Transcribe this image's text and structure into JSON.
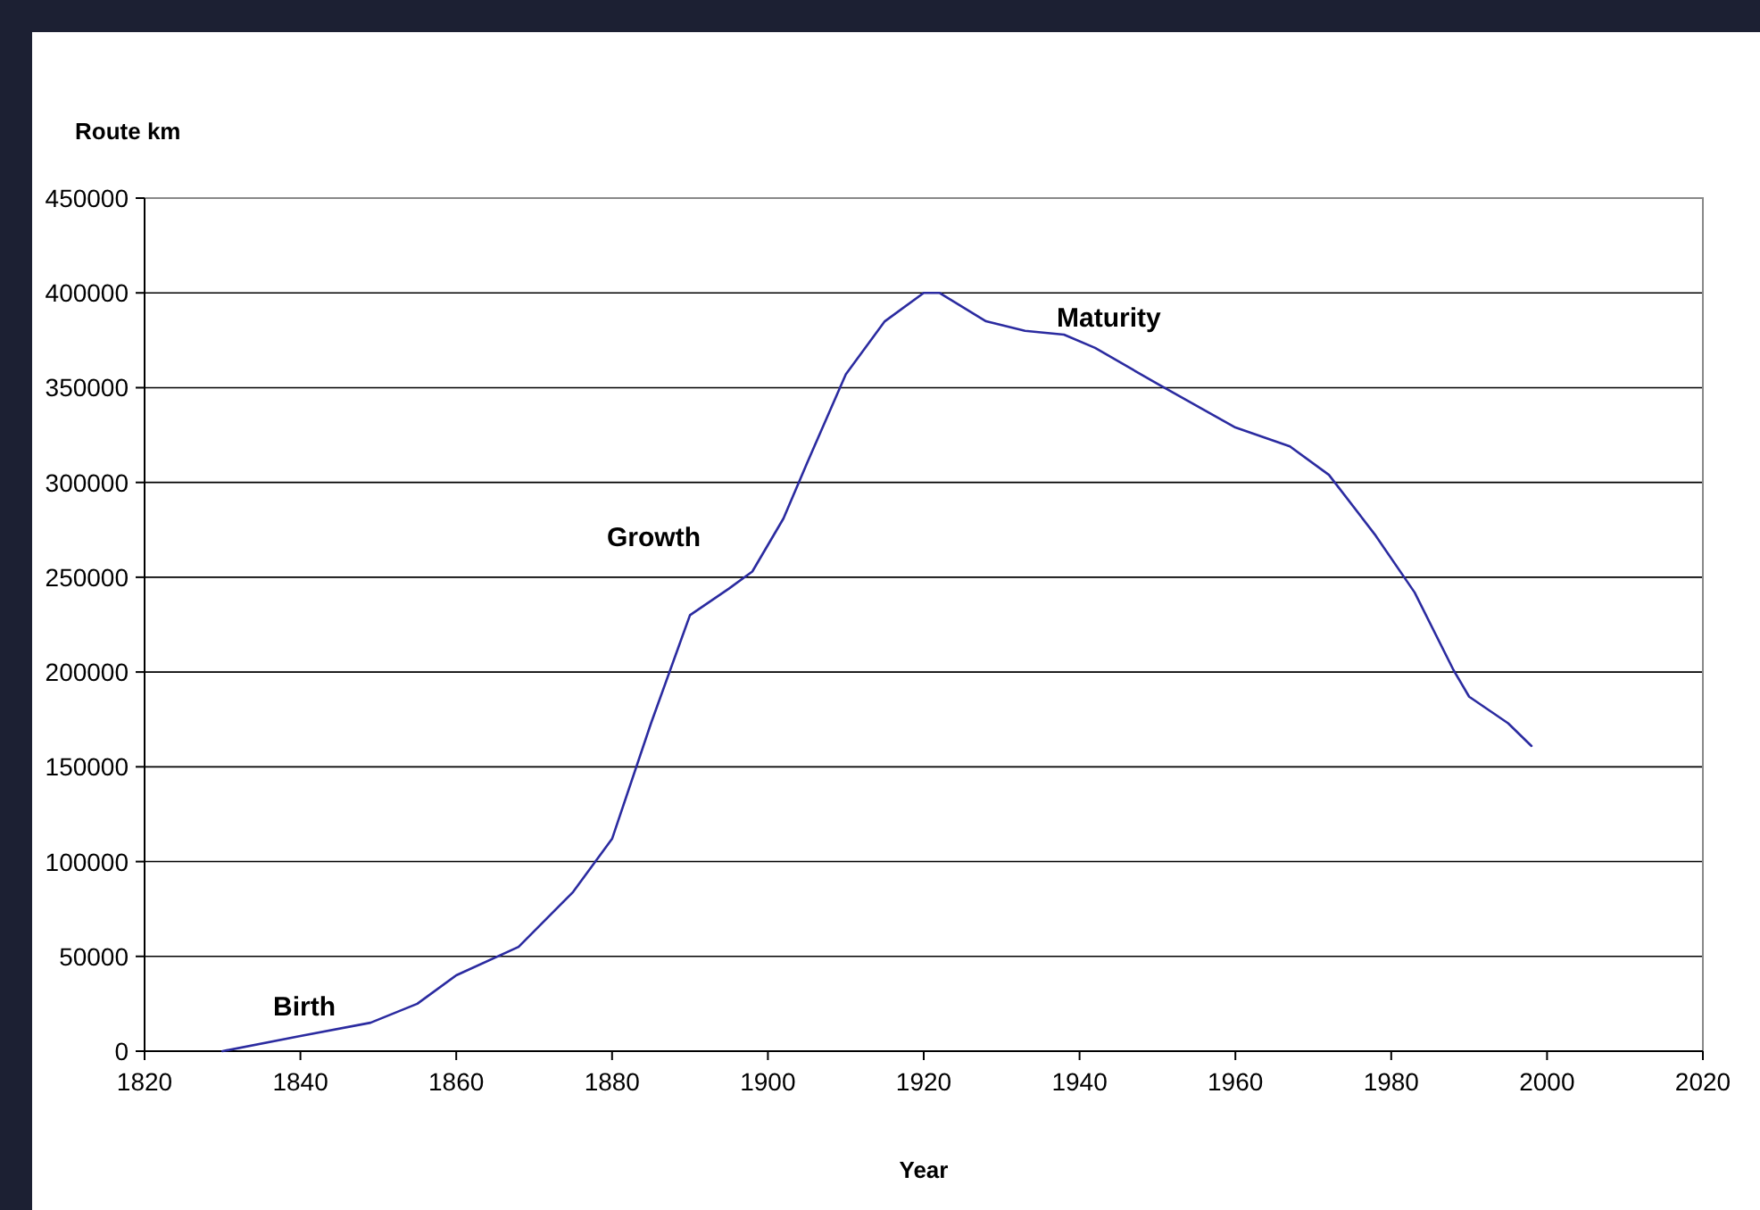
{
  "chart_data": {
    "type": "line",
    "xlabel": "Year",
    "ylabel": "Route km",
    "x": [
      1830,
      1840,
      1849,
      1855,
      1860,
      1868,
      1875,
      1880,
      1885,
      1890,
      1895,
      1898,
      1902,
      1905,
      1910,
      1915,
      1920,
      1922,
      1928,
      1933,
      1938,
      1942,
      1950,
      1960,
      1967,
      1972,
      1978,
      1983,
      1988,
      1990,
      1995,
      1998
    ],
    "series": [
      {
        "color": "#2b2ba0",
        "values": [
          0,
          8000,
          15000,
          25000,
          40000,
          55000,
          84000,
          112000,
          173000,
          230000,
          244000,
          253000,
          281000,
          310000,
          357000,
          385000,
          400000,
          400000,
          385000,
          380000,
          378000,
          371000,
          352000,
          329000,
          319000,
          304000,
          272000,
          242000,
          201000,
          187000,
          173000,
          161000
        ]
      }
    ],
    "xlim": [
      1820,
      2020
    ],
    "xticks": [
      1820,
      1840,
      1860,
      1880,
      1900,
      1920,
      1940,
      1960,
      1980,
      2000,
      2020
    ],
    "ylim": [
      0,
      450000
    ],
    "yticks": [
      0,
      50000,
      100000,
      150000,
      200000,
      250000,
      300000,
      350000,
      400000,
      450000
    ],
    "grid": "y",
    "marker": "none",
    "line_style": "solid",
    "annotations": [
      "Birth",
      "Growth",
      "Maturity"
    ]
  }
}
